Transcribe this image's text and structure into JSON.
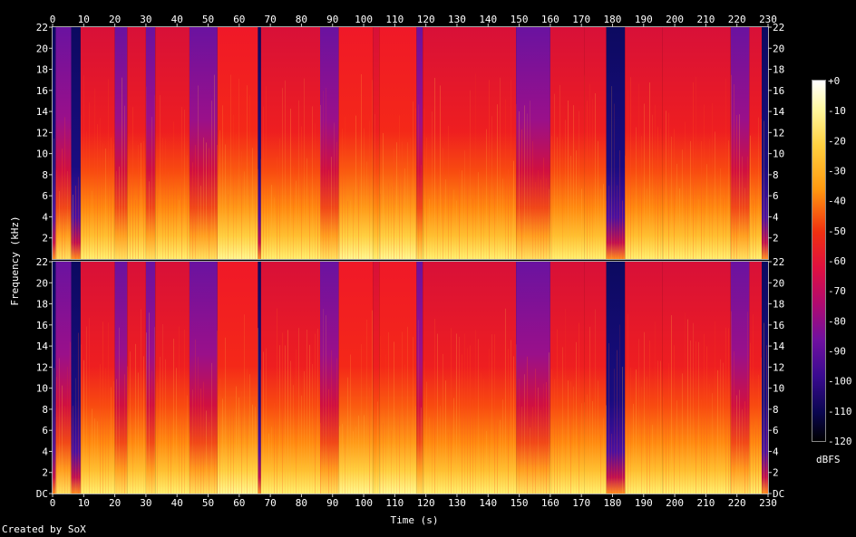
{
  "chart_data": {
    "type": "heatmap",
    "title": "",
    "xlabel": "Time (s)",
    "ylabel": "Frequency (kHz)",
    "xlim": [
      0,
      230
    ],
    "x_ticks": [
      "0",
      "10",
      "20",
      "30",
      "40",
      "50",
      "60",
      "70",
      "80",
      "90",
      "100",
      "110",
      "120",
      "130",
      "140",
      "150",
      "160",
      "170",
      "180",
      "190",
      "200",
      "210",
      "220",
      "230"
    ],
    "channels": [
      {
        "name": "",
        "ylim_khz": [
          0,
          22
        ],
        "y_ticks": [
          "22",
          "20",
          "18",
          "16",
          "14",
          "12",
          "10",
          "8",
          "6",
          "4",
          "2"
        ]
      },
      {
        "name": "",
        "ylim_khz": [
          0,
          22
        ],
        "y_ticks": [
          "22",
          "20",
          "18",
          "16",
          "14",
          "12",
          "10",
          "8",
          "6",
          "4",
          "2",
          "DC"
        ]
      }
    ],
    "colorbar": {
      "label": "dBFS",
      "range": [
        -120,
        0
      ],
      "ticks": [
        "+0",
        "-10",
        "-20",
        "-30",
        "-40",
        "-50",
        "-60",
        "-70",
        "-80",
        "-90",
        "-100",
        "-110",
        "-120"
      ]
    },
    "segments": [
      {
        "start": 0,
        "end": 1,
        "level": "dark"
      },
      {
        "start": 1,
        "end": 6,
        "level": "purple"
      },
      {
        "start": 6,
        "end": 9,
        "level": "dark"
      },
      {
        "start": 9,
        "end": 20,
        "level": "red"
      },
      {
        "start": 20,
        "end": 24,
        "level": "purple"
      },
      {
        "start": 24,
        "end": 30,
        "level": "red"
      },
      {
        "start": 30,
        "end": 33,
        "level": "purple"
      },
      {
        "start": 33,
        "end": 44,
        "level": "red"
      },
      {
        "start": 44,
        "end": 53,
        "level": "purple"
      },
      {
        "start": 53,
        "end": 66,
        "level": "bright"
      },
      {
        "start": 66,
        "end": 67,
        "level": "dark"
      },
      {
        "start": 67,
        "end": 86,
        "level": "red"
      },
      {
        "start": 86,
        "end": 92,
        "level": "purple"
      },
      {
        "start": 92,
        "end": 103,
        "level": "bright"
      },
      {
        "start": 103,
        "end": 105,
        "level": "red"
      },
      {
        "start": 105,
        "end": 117,
        "level": "bright"
      },
      {
        "start": 117,
        "end": 119,
        "level": "purple"
      },
      {
        "start": 119,
        "end": 149,
        "level": "red"
      },
      {
        "start": 149,
        "end": 160,
        "level": "purple"
      },
      {
        "start": 160,
        "end": 171,
        "level": "red"
      },
      {
        "start": 171,
        "end": 178,
        "level": "red"
      },
      {
        "start": 178,
        "end": 184,
        "level": "dark"
      },
      {
        "start": 184,
        "end": 196,
        "level": "red"
      },
      {
        "start": 196,
        "end": 218,
        "level": "red"
      },
      {
        "start": 218,
        "end": 224,
        "level": "purple"
      },
      {
        "start": 224,
        "end": 228,
        "level": "red"
      },
      {
        "start": 228,
        "end": 230,
        "level": "dark"
      }
    ]
  },
  "footer": {
    "credit": "Created by SoX"
  }
}
